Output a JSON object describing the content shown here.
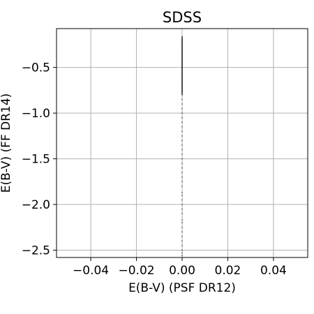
{
  "chart_data": {
    "type": "scatter",
    "title": "SDSS",
    "xlabel": "E(B-V) (PSF DR12)",
    "ylabel": "E(B-V) (FF DR14)",
    "xlim": [
      -0.055,
      0.055
    ],
    "ylim": [
      -2.58,
      -0.075
    ],
    "xticks": [
      -0.04,
      -0.02,
      0.0,
      0.02,
      0.04
    ],
    "xtick_labels": [
      "−0.04",
      "−0.02",
      "0.00",
      "0.02",
      "0.04"
    ],
    "yticks": [
      -0.5,
      -1.0,
      -1.5,
      -2.0,
      -2.5
    ],
    "ytick_labels": [
      "−0.5",
      "−1.0",
      "−1.5",
      "−2.0",
      "−2.5"
    ],
    "grid": true,
    "marker_color": "#000000",
    "series": [
      {
        "x": [
          0,
          0,
          0,
          0,
          0,
          0,
          0,
          0,
          0,
          0,
          0,
          0,
          0,
          0,
          0,
          0,
          0,
          0,
          0,
          0,
          0,
          0,
          0,
          0,
          0,
          0,
          0,
          0,
          0,
          0,
          0,
          0,
          0,
          0,
          0,
          0,
          0,
          0,
          0,
          0,
          0,
          0,
          0,
          0,
          0,
          0,
          0,
          0,
          0,
          0,
          0,
          0,
          0,
          0,
          0,
          0,
          0,
          0,
          0,
          0,
          0,
          0,
          0,
          0,
          0,
          0,
          0,
          0
        ],
        "y": [
          -0.18,
          -0.2,
          -0.22,
          -0.24,
          -0.26,
          -0.28,
          -0.3,
          -0.32,
          -0.34,
          -0.36,
          -0.38,
          -0.4,
          -0.42,
          -0.44,
          -0.46,
          -0.48,
          -0.5,
          -0.52,
          -0.54,
          -0.56,
          -0.58,
          -0.6,
          -0.62,
          -0.64,
          -0.66,
          -0.68,
          -0.7,
          -0.72,
          -0.74,
          -0.76,
          -0.78,
          -0.8,
          -0.85,
          -0.9,
          -0.95,
          -1.0,
          -1.05,
          -1.1,
          -1.15,
          -1.2,
          -1.25,
          -1.3,
          -1.35,
          -1.4,
          -1.45,
          -1.5,
          -1.55,
          -1.6,
          -1.65,
          -1.7,
          -1.75,
          -1.8,
          -1.87,
          -1.9,
          -1.95,
          -2.0,
          -2.05,
          -2.1,
          -2.17,
          -2.2,
          -2.25,
          -2.3,
          -2.35,
          -2.4,
          -2.45,
          -2.5,
          -2.53,
          -2.56
        ]
      }
    ]
  }
}
